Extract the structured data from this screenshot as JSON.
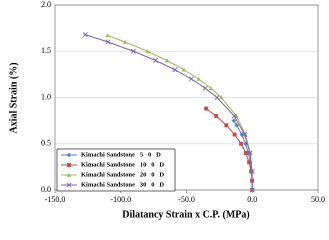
{
  "chart_data": {
    "type": "scatter",
    "xlabel": "Dilatancy Strain x C.P.  (MPa)",
    "ylabel": "Axial  Strain    (%)",
    "xlim": [
      -150,
      50
    ],
    "xticks": [
      {
        "value": -150,
        "label": "-150.0"
      },
      {
        "value": -100,
        "label": "-100.0"
      },
      {
        "value": -50,
        "label": "-50.0"
      },
      {
        "value": 0,
        "label": "0.0"
      },
      {
        "value": 50,
        "label": "50.0"
      }
    ],
    "ylim": [
      0,
      2
    ],
    "yticks": [
      {
        "value": 0,
        "label": "0.0"
      },
      0.5,
      {
        "value": 1,
        "label": "1.0"
      },
      1.5,
      {
        "value": 2,
        "label": "2.0"
      }
    ],
    "grid": true,
    "legend": "lower-left",
    "series": [
      {
        "name": "Kimachi Sandstone   5   0   D",
        "color": "#4f81bd",
        "marker": "diamond",
        "x": [
          0,
          -0.09,
          -0.51,
          -1.4,
          -2.9,
          -5.1,
          -8.0,
          -11.8,
          -14
        ],
        "y": [
          0,
          0.1,
          0.2,
          0.3,
          0.4,
          0.5,
          0.6,
          0.7,
          0.75
        ]
      },
      {
        "name": "Kimachi Sandstone   10   0   D",
        "color": "#c0504d",
        "marker": "square",
        "x": [
          0,
          -0.15,
          -0.86,
          -2.4,
          -4.9,
          -8.5,
          -13.4,
          -19.7,
          -27.4,
          -35
        ],
        "y": [
          0,
          0.1,
          0.2,
          0.3,
          0.4,
          0.5,
          0.6,
          0.7,
          0.8,
          0.88
        ]
      },
      {
        "name": "Kimachi Sandstone   20   0   D",
        "color": "#9bbb59",
        "marker": "triangle",
        "x": [
          0,
          -0.2,
          -1.5,
          -5.1,
          -12.1,
          -23.6,
          -31.4,
          -40.8,
          -51.9,
          -64.8,
          -79.7,
          -96.7,
          -110
        ],
        "y": [
          0,
          0.2,
          0.4,
          0.6,
          0.8,
          1.0,
          1.1,
          1.2,
          1.3,
          1.4,
          1.5,
          1.6,
          1.67
        ]
      },
      {
        "name": "Kimachi Sandstone   30   0   D",
        "color": "#8064a2",
        "marker": "x",
        "x": [
          0,
          -0.21,
          -1.7,
          -5.8,
          -13.7,
          -26.8,
          -35.7,
          -46.3,
          -58.8,
          -73.5,
          -90.4,
          -109.7,
          -127
        ],
        "y": [
          0,
          0.2,
          0.4,
          0.6,
          0.8,
          1.0,
          1.1,
          1.2,
          1.3,
          1.4,
          1.5,
          1.6,
          1.68
        ]
      }
    ]
  }
}
